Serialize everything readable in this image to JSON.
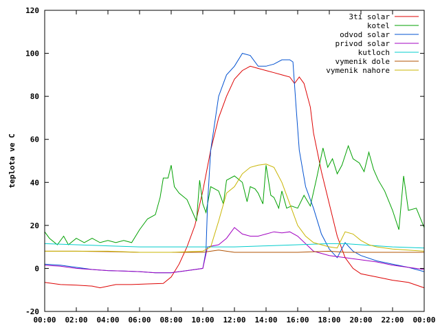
{
  "chart_data": {
    "type": "line",
    "title": "",
    "xlabel": "",
    "ylabel": "teplota ve C",
    "xlim": [
      0,
      24
    ],
    "ylim": [
      -20,
      120
    ],
    "y_ticks": [
      -20,
      0,
      20,
      40,
      60,
      80,
      100,
      120
    ],
    "x_ticks": [
      {
        "v": 0,
        "label": "00:00"
      },
      {
        "v": 2,
        "label": "02:00"
      },
      {
        "v": 4,
        "label": "04:00"
      },
      {
        "v": 6,
        "label": "06:00"
      },
      {
        "v": 8,
        "label": "08:00"
      },
      {
        "v": 10,
        "label": "10:00"
      },
      {
        "v": 12,
        "label": "12:00"
      },
      {
        "v": 14,
        "label": "14:00"
      },
      {
        "v": 16,
        "label": "16:00"
      },
      {
        "v": 18,
        "label": "18:00"
      },
      {
        "v": 20,
        "label": "20:00"
      },
      {
        "v": 22,
        "label": "22:00"
      },
      {
        "v": 24,
        "label": "00:00"
      }
    ],
    "grid": false,
    "legend_position": "top-right",
    "series": [
      {
        "name": "3ti solar",
        "color": "#dd0000",
        "points": [
          [
            0,
            -6.5
          ],
          [
            1,
            -7.5
          ],
          [
            2,
            -7.8
          ],
          [
            3,
            -8.2
          ],
          [
            3.5,
            -9
          ],
          [
            4.5,
            -7.5
          ],
          [
            5.5,
            -7.5
          ],
          [
            6.5,
            -7.2
          ],
          [
            7.5,
            -7
          ],
          [
            8,
            -4
          ],
          [
            8.5,
            2
          ],
          [
            9,
            10
          ],
          [
            9.5,
            20
          ],
          [
            10,
            36
          ],
          [
            10.5,
            55
          ],
          [
            11,
            70
          ],
          [
            11.5,
            80
          ],
          [
            12,
            88
          ],
          [
            12.5,
            92
          ],
          [
            13,
            94
          ],
          [
            13.5,
            93
          ],
          [
            14,
            92
          ],
          [
            14.5,
            91
          ],
          [
            15,
            90
          ],
          [
            15.5,
            89
          ],
          [
            15.8,
            86
          ],
          [
            16.1,
            89
          ],
          [
            16.4,
            86
          ],
          [
            16.8,
            75
          ],
          [
            17,
            63
          ],
          [
            17.5,
            45
          ],
          [
            18,
            30
          ],
          [
            18.5,
            15
          ],
          [
            19,
            5
          ],
          [
            19.5,
            0
          ],
          [
            20,
            -2.5
          ],
          [
            21,
            -4
          ],
          [
            22,
            -5.5
          ],
          [
            23,
            -6.5
          ],
          [
            24,
            -9
          ]
        ]
      },
      {
        "name": "kotel",
        "color": "#00a000",
        "points": [
          [
            0,
            17
          ],
          [
            0.3,
            14
          ],
          [
            0.8,
            11
          ],
          [
            1.2,
            15
          ],
          [
            1.5,
            11
          ],
          [
            2,
            14
          ],
          [
            2.5,
            12
          ],
          [
            3,
            14
          ],
          [
            3.5,
            12
          ],
          [
            4,
            13
          ],
          [
            4.5,
            12
          ],
          [
            5,
            13
          ],
          [
            5.5,
            12
          ],
          [
            6,
            18
          ],
          [
            6.5,
            23
          ],
          [
            7,
            25
          ],
          [
            7.3,
            33
          ],
          [
            7.5,
            42
          ],
          [
            7.8,
            42
          ],
          [
            8,
            48
          ],
          [
            8.2,
            38
          ],
          [
            8.5,
            35
          ],
          [
            9,
            32
          ],
          [
            9.3,
            27
          ],
          [
            9.6,
            22
          ],
          [
            9.8,
            41
          ],
          [
            10,
            30
          ],
          [
            10.2,
            26
          ],
          [
            10.5,
            38
          ],
          [
            11,
            36
          ],
          [
            11.3,
            30
          ],
          [
            11.5,
            41
          ],
          [
            12,
            43
          ],
          [
            12.5,
            40
          ],
          [
            12.8,
            31
          ],
          [
            13,
            38
          ],
          [
            13.3,
            37
          ],
          [
            13.5,
            35
          ],
          [
            13.8,
            30
          ],
          [
            14,
            48
          ],
          [
            14.3,
            34
          ],
          [
            14.5,
            33
          ],
          [
            14.8,
            28
          ],
          [
            15,
            36
          ],
          [
            15.3,
            28
          ],
          [
            15.6,
            29
          ],
          [
            16,
            28
          ],
          [
            16.4,
            34
          ],
          [
            16.8,
            29
          ],
          [
            17.2,
            42
          ],
          [
            17.6,
            56
          ],
          [
            17.9,
            47
          ],
          [
            18.2,
            51
          ],
          [
            18.5,
            44
          ],
          [
            18.8,
            48
          ],
          [
            19.2,
            57
          ],
          [
            19.5,
            51
          ],
          [
            19.9,
            49
          ],
          [
            20.2,
            45
          ],
          [
            20.5,
            54
          ],
          [
            20.8,
            46
          ],
          [
            21.1,
            41
          ],
          [
            21.5,
            36
          ],
          [
            22,
            27
          ],
          [
            22.4,
            18
          ],
          [
            22.7,
            43
          ],
          [
            23,
            27
          ],
          [
            23.5,
            28
          ],
          [
            24,
            19
          ]
        ]
      },
      {
        "name": "odvod solar",
        "color": "#0050d0",
        "points": [
          [
            0,
            2
          ],
          [
            1,
            1.5
          ],
          [
            2,
            0.5
          ],
          [
            3,
            -0.5
          ],
          [
            4,
            -1
          ],
          [
            5,
            -1.2
          ],
          [
            6,
            -1.5
          ],
          [
            7,
            -2
          ],
          [
            8,
            -2
          ],
          [
            9,
            -1
          ],
          [
            10,
            0
          ],
          [
            10.2,
            8
          ],
          [
            10.3,
            30
          ],
          [
            10.5,
            55
          ],
          [
            11,
            80
          ],
          [
            11.5,
            90
          ],
          [
            12,
            94
          ],
          [
            12.5,
            100
          ],
          [
            13,
            99
          ],
          [
            13.5,
            94
          ],
          [
            14,
            94
          ],
          [
            14.5,
            95
          ],
          [
            15,
            97
          ],
          [
            15.5,
            97
          ],
          [
            15.7,
            96
          ],
          [
            15.9,
            75
          ],
          [
            16.1,
            55
          ],
          [
            16.5,
            38
          ],
          [
            17,
            28
          ],
          [
            17.5,
            16
          ],
          [
            18,
            9
          ],
          [
            18.5,
            5
          ],
          [
            19,
            12
          ],
          [
            19.5,
            8
          ],
          [
            20,
            6
          ],
          [
            21,
            3.5
          ],
          [
            22,
            2
          ],
          [
            23,
            0.5
          ],
          [
            24,
            -1.5
          ]
        ]
      },
      {
        "name": "privod solar",
        "color": "#a000c0",
        "points": [
          [
            0,
            1.5
          ],
          [
            1,
            1
          ],
          [
            2,
            0
          ],
          [
            3,
            -0.5
          ],
          [
            4,
            -1
          ],
          [
            5,
            -1.2
          ],
          [
            6,
            -1.5
          ],
          [
            7,
            -2
          ],
          [
            8,
            -2
          ],
          [
            9,
            -1
          ],
          [
            10,
            0
          ],
          [
            10.3,
            10
          ],
          [
            11,
            11
          ],
          [
            11.5,
            14
          ],
          [
            12,
            19
          ],
          [
            12.5,
            16
          ],
          [
            13,
            15
          ],
          [
            13.5,
            15
          ],
          [
            14,
            16
          ],
          [
            14.5,
            17
          ],
          [
            15,
            16.5
          ],
          [
            15.5,
            17
          ],
          [
            16,
            15
          ],
          [
            17,
            8
          ],
          [
            18,
            6
          ],
          [
            19,
            5
          ],
          [
            20,
            4
          ],
          [
            21,
            3
          ],
          [
            22,
            1.5
          ],
          [
            23,
            0.5
          ],
          [
            24,
            -0.5
          ]
        ]
      },
      {
        "name": "kutloch",
        "color": "#00cccc",
        "points": [
          [
            0,
            11.5
          ],
          [
            2,
            11
          ],
          [
            4,
            10.5
          ],
          [
            6,
            10
          ],
          [
            8,
            10
          ],
          [
            10,
            10
          ],
          [
            12,
            10
          ],
          [
            14,
            10.5
          ],
          [
            16,
            11
          ],
          [
            18,
            11.5
          ],
          [
            19,
            11.5
          ],
          [
            20,
            11
          ],
          [
            22,
            10
          ],
          [
            24,
            9.5
          ]
        ]
      },
      {
        "name": "vymenik dole",
        "color": "#b05000",
        "points": [
          [
            0,
            8
          ],
          [
            2,
            8
          ],
          [
            4,
            7.8
          ],
          [
            6,
            7.5
          ],
          [
            8,
            7.5
          ],
          [
            10,
            7.5
          ],
          [
            11,
            8.5
          ],
          [
            12,
            7.5
          ],
          [
            14,
            7.5
          ],
          [
            16,
            7.5
          ],
          [
            18,
            8
          ],
          [
            19,
            7.5
          ],
          [
            20,
            7.5
          ],
          [
            22,
            7.5
          ],
          [
            24,
            7.5
          ]
        ]
      },
      {
        "name": "vymenik nahore",
        "color": "#c8b400",
        "points": [
          [
            0,
            8
          ],
          [
            2,
            8
          ],
          [
            4,
            8
          ],
          [
            6,
            7.5
          ],
          [
            8,
            7.5
          ],
          [
            10,
            8
          ],
          [
            10.5,
            10
          ],
          [
            11,
            22
          ],
          [
            11.5,
            35
          ],
          [
            12,
            38
          ],
          [
            12.5,
            44
          ],
          [
            13,
            47
          ],
          [
            13.5,
            48
          ],
          [
            14,
            48.5
          ],
          [
            14.5,
            47
          ],
          [
            15,
            40
          ],
          [
            15.5,
            30
          ],
          [
            16,
            20
          ],
          [
            16.5,
            15
          ],
          [
            17,
            12
          ],
          [
            17.5,
            11
          ],
          [
            18,
            10
          ],
          [
            18.5,
            9.5
          ],
          [
            19,
            17
          ],
          [
            19.5,
            16
          ],
          [
            20,
            13
          ],
          [
            20.5,
            11
          ],
          [
            21,
            10
          ],
          [
            22,
            9
          ],
          [
            24,
            8
          ]
        ]
      }
    ]
  }
}
